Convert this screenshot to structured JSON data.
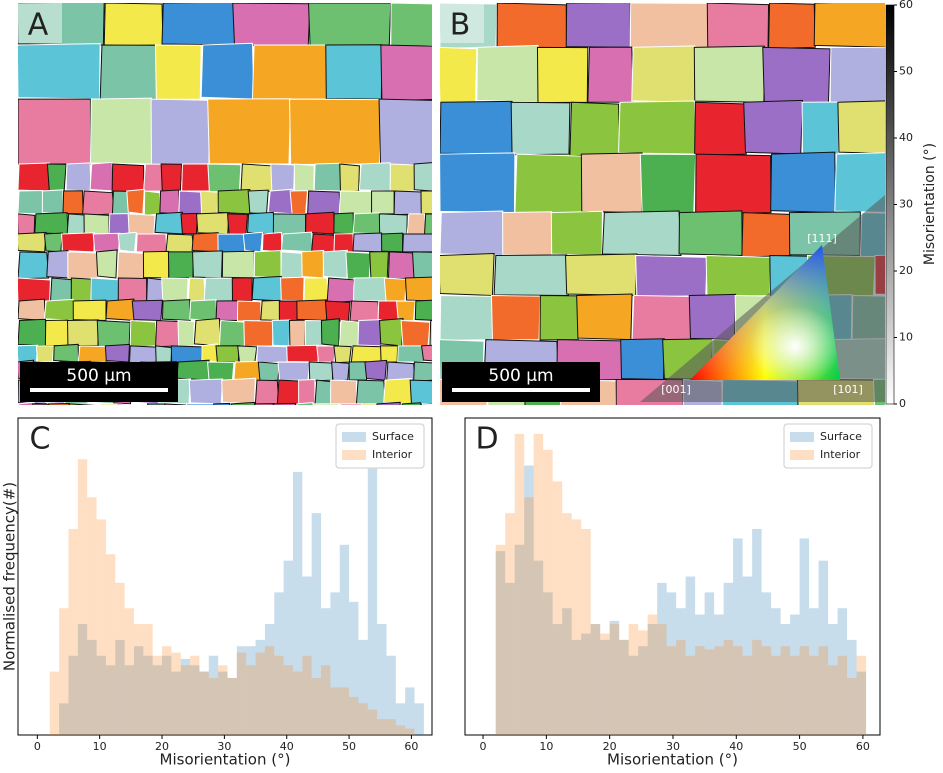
{
  "maps": [
    {
      "label": "A",
      "scale_bar": "500 µm"
    },
    {
      "label": "B",
      "scale_bar": "500 µm"
    }
  ],
  "colorbar": {
    "label": "Misorientation (°)",
    "ylim": [
      0,
      60
    ],
    "yticks": [
      0,
      10,
      20,
      30,
      40,
      50,
      60
    ]
  },
  "ipf_key": {
    "corners": [
      "[001]",
      "[101]",
      "[111]"
    ]
  },
  "chart_data": [
    {
      "type": "histogram",
      "panel_label": "C",
      "xlabel": "Misorientation (°)",
      "ylabel": "Normalised frequency(#)",
      "bins": [
        2,
        3.5,
        5,
        6.5,
        8,
        9.5,
        11,
        12.5,
        14,
        15.5,
        17,
        18.5,
        20,
        21.5,
        23,
        24.5,
        26,
        27.5,
        29,
        30.5,
        32,
        33.5,
        35,
        36.5,
        38,
        39.5,
        41,
        42.5,
        44,
        45.5,
        47,
        48.5,
        50,
        51.5,
        53,
        54.5,
        56,
        57.5,
        59,
        60.5,
        62
      ],
      "series": [
        {
          "name": "Surface",
          "color": "#1f77b4",
          "values": [
            0,
            10,
            25,
            35,
            30,
            25,
            22,
            30,
            22,
            28,
            25,
            22,
            25,
            20,
            24,
            22,
            20,
            25,
            20,
            18,
            28,
            28,
            30,
            35,
            45,
            55,
            83,
            50,
            70,
            40,
            45,
            60,
            42,
            30,
            84,
            35,
            25,
            10,
            15,
            10
          ]
        },
        {
          "name": "Interior",
          "color": "#ff7f0e",
          "values": [
            20,
            40,
            65,
            87,
            75,
            68,
            57,
            48,
            40,
            35,
            35,
            25,
            28,
            26,
            22,
            25,
            20,
            18,
            22,
            18,
            26,
            22,
            26,
            28,
            25,
            22,
            20,
            25,
            18,
            22,
            15,
            15,
            12,
            10,
            8,
            5,
            5,
            3,
            2,
            0
          ]
        }
      ],
      "alpha": 0.25,
      "xlim": [
        -3.1,
        63.3
      ],
      "ylim": [
        0,
        100
      ],
      "xticks": [
        0,
        10,
        20,
        30,
        40,
        50,
        60
      ],
      "legend": "upper right"
    },
    {
      "type": "histogram",
      "panel_label": "D",
      "xlabel": "Misorientation (°)",
      "bins": [
        2,
        3.5,
        5,
        6.5,
        8,
        9.5,
        11,
        12.5,
        14,
        15.5,
        17,
        18.5,
        20,
        21.5,
        23,
        24.5,
        26,
        27.5,
        29,
        30.5,
        32,
        33.5,
        35,
        36.5,
        38,
        39.5,
        41,
        42.5,
        44,
        45.5,
        47,
        48.5,
        50,
        51.5,
        53,
        54.5,
        56,
        57.5,
        59,
        60.5,
        62
      ],
      "series": [
        {
          "name": "Surface",
          "color": "#1f77b4",
          "values": [
            58,
            48,
            60,
            85,
            55,
            45,
            35,
            40,
            30,
            32,
            35,
            30,
            36,
            30,
            25,
            28,
            35,
            48,
            45,
            40,
            50,
            38,
            45,
            38,
            48,
            62,
            50,
            65,
            45,
            40,
            35,
            38,
            62,
            40,
            55,
            35,
            40,
            30,
            20,
            0
          ]
        },
        {
          "name": "Interior",
          "color": "#ff7f0e",
          "values": [
            60,
            70,
            95,
            75,
            95,
            90,
            80,
            70,
            68,
            65,
            35,
            32,
            35,
            30,
            35,
            33,
            38,
            35,
            28,
            30,
            25,
            28,
            27,
            28,
            30,
            28,
            25,
            30,
            28,
            25,
            28,
            25,
            28,
            25,
            28,
            22,
            25,
            18,
            25,
            0
          ]
        }
      ],
      "alpha": 0.25,
      "xlim": [
        -2.85,
        62.7
      ],
      "ylim": [
        0,
        100
      ],
      "xticks": [
        0,
        10,
        20,
        30,
        40,
        50,
        60
      ],
      "legend": "upper right"
    }
  ]
}
